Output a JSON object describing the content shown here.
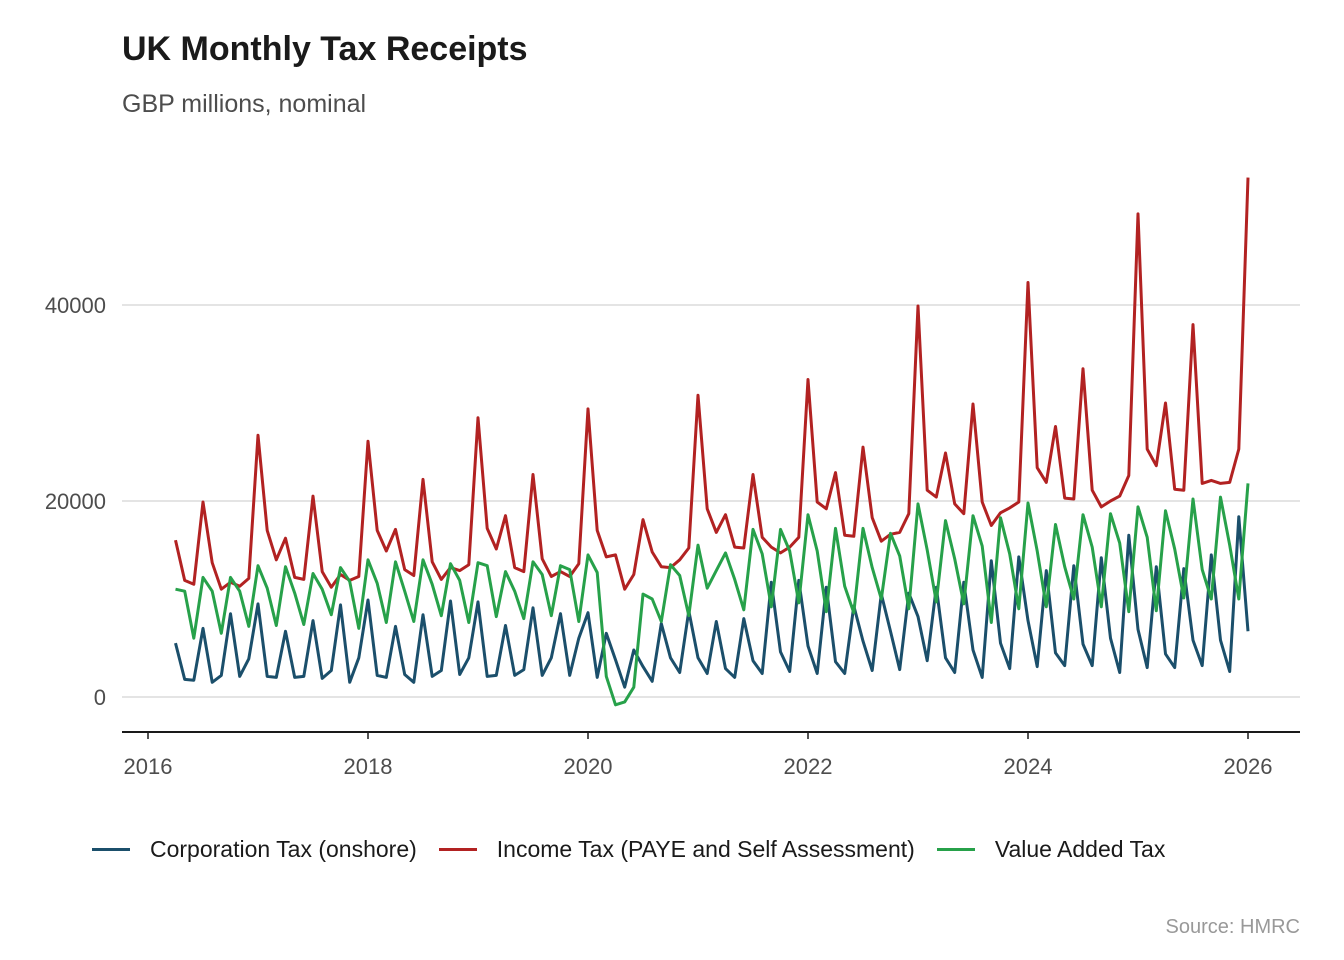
{
  "chart_data": {
    "type": "line",
    "title": "UK Monthly Tax Receipts",
    "subtitle": "GBP millions, nominal",
    "xlabel": "",
    "ylabel": "",
    "source": "Source: HMRC",
    "x_start": "2016-04",
    "x_frequency": "monthly",
    "xlim": [
      2015.8,
      2026.5
    ],
    "ylim": [
      -3500,
      55000
    ],
    "x_ticks": [
      2016,
      2018,
      2020,
      2022,
      2024,
      2026
    ],
    "x_tick_labels": [
      "2016",
      "2018",
      "2020",
      "2022",
      "2024",
      "2026"
    ],
    "y_ticks": [
      0,
      20000,
      40000
    ],
    "y_tick_labels": [
      "0",
      "20000",
      "40000"
    ],
    "grid": "horizontal",
    "legend_position": "bottom",
    "series": [
      {
        "name": "Corporation Tax (onshore)",
        "color": "#1b4f6b",
        "values": [
          5500,
          1800,
          1700,
          7000,
          1500,
          2200,
          8500,
          2100,
          3900,
          9500,
          2100,
          2000,
          6700,
          2000,
          2100,
          7800,
          1900,
          2700,
          9400,
          1500,
          4000,
          9900,
          2200,
          2000,
          7200,
          2300,
          1500,
          8400,
          2100,
          2700,
          9800,
          2300,
          4000,
          9700,
          2100,
          2200,
          7300,
          2200,
          2800,
          9100,
          2200,
          4000,
          8500,
          2200,
          6000,
          8600,
          2000,
          6500,
          3800,
          1000,
          4800,
          3100,
          1600,
          7500,
          4000,
          2500,
          8800,
          4000,
          2400,
          7700,
          2900,
          2000,
          8000,
          3700,
          2400,
          11700,
          4600,
          2600,
          11900,
          5200,
          2400,
          11200,
          3600,
          2400,
          9300,
          5700,
          2700,
          10500,
          6700,
          2800,
          10600,
          8200,
          3700,
          11200,
          4000,
          2500,
          11700,
          4800,
          2000,
          13900,
          5500,
          2900,
          14300,
          7800,
          3100,
          12900,
          4500,
          3200,
          13400,
          5400,
          3200,
          14200,
          6000,
          2500,
          16500,
          6900,
          3000,
          13300,
          4400,
          3000,
          13100,
          5800,
          3200,
          14500,
          5800,
          2600,
          18400,
          6700
        ]
      },
      {
        "name": "Income Tax (PAYE and Self Assessment)",
        "color": "#b22222",
        "values": [
          16000,
          11900,
          11500,
          19900,
          13700,
          11000,
          11700,
          11300,
          12100,
          26700,
          17000,
          14000,
          16200,
          12200,
          12000,
          20500,
          12800,
          11200,
          12500,
          11900,
          12300,
          26100,
          17000,
          14900,
          17100,
          13000,
          12400,
          22200,
          13800,
          12000,
          13200,
          12900,
          13500,
          28500,
          17200,
          15100,
          18500,
          13200,
          12800,
          22700,
          14100,
          12300,
          12800,
          12300,
          13600,
          29400,
          17000,
          14300,
          14500,
          11000,
          12500,
          18100,
          14800,
          13300,
          13200,
          14000,
          15200,
          30800,
          19200,
          16800,
          18600,
          15300,
          15200,
          22700,
          16300,
          15300,
          14700,
          15300,
          16300,
          32400,
          19900,
          19200,
          22900,
          16500,
          16400,
          25500,
          18300,
          15900,
          16600,
          16800,
          18700,
          39900,
          21100,
          20400,
          24900,
          19700,
          18700,
          29900,
          19900,
          17500,
          18800,
          19300,
          19900,
          42300,
          23400,
          21900,
          27600,
          20300,
          20200,
          33500,
          21100,
          19400,
          20000,
          20500,
          22600,
          49300,
          25300,
          23600,
          30000,
          21200,
          21100,
          38000,
          21800,
          22100,
          21800,
          21900,
          25300,
          53000
        ]
      },
      {
        "name": "Value Added Tax",
        "color": "#27a14a",
        "values": [
          11000,
          10800,
          6000,
          12200,
          10800,
          6500,
          12200,
          10800,
          7200,
          13400,
          11100,
          7300,
          13300,
          10600,
          7400,
          12600,
          11000,
          8400,
          13200,
          11800,
          7000,
          14000,
          11600,
          7600,
          13800,
          10800,
          7700,
          14000,
          11500,
          8300,
          13600,
          11900,
          7600,
          13700,
          13400,
          8200,
          12800,
          10800,
          8000,
          13800,
          12500,
          8300,
          13400,
          13000,
          7700,
          14500,
          12700,
          2100,
          -800,
          -500,
          1000,
          10500,
          10000,
          7700,
          13500,
          12400,
          8300,
          15500,
          11100,
          12900,
          14700,
          12000,
          8900,
          17100,
          14600,
          9200,
          17100,
          14900,
          9600,
          18600,
          14900,
          8700,
          17200,
          11300,
          8600,
          17200,
          13200,
          10000,
          16700,
          14400,
          9000,
          19700,
          15000,
          9700,
          18000,
          14100,
          9500,
          18500,
          15400,
          7600,
          18300,
          14600,
          9000,
          19800,
          14900,
          9200,
          17600,
          13300,
          10000,
          18600,
          15300,
          9200,
          18700,
          15700,
          8700,
          19400,
          16300,
          8800,
          19000,
          15100,
          10100,
          20200,
          13000,
          10000,
          20400,
          15500,
          10000,
          21800
        ]
      }
    ]
  },
  "legend": {
    "items": [
      {
        "label": "Corporation Tax (onshore)",
        "color": "#1b4f6b"
      },
      {
        "label": "Income Tax (PAYE and Self Assessment)",
        "color": "#b22222"
      },
      {
        "label": "Value Added Tax",
        "color": "#27a14a"
      }
    ]
  }
}
